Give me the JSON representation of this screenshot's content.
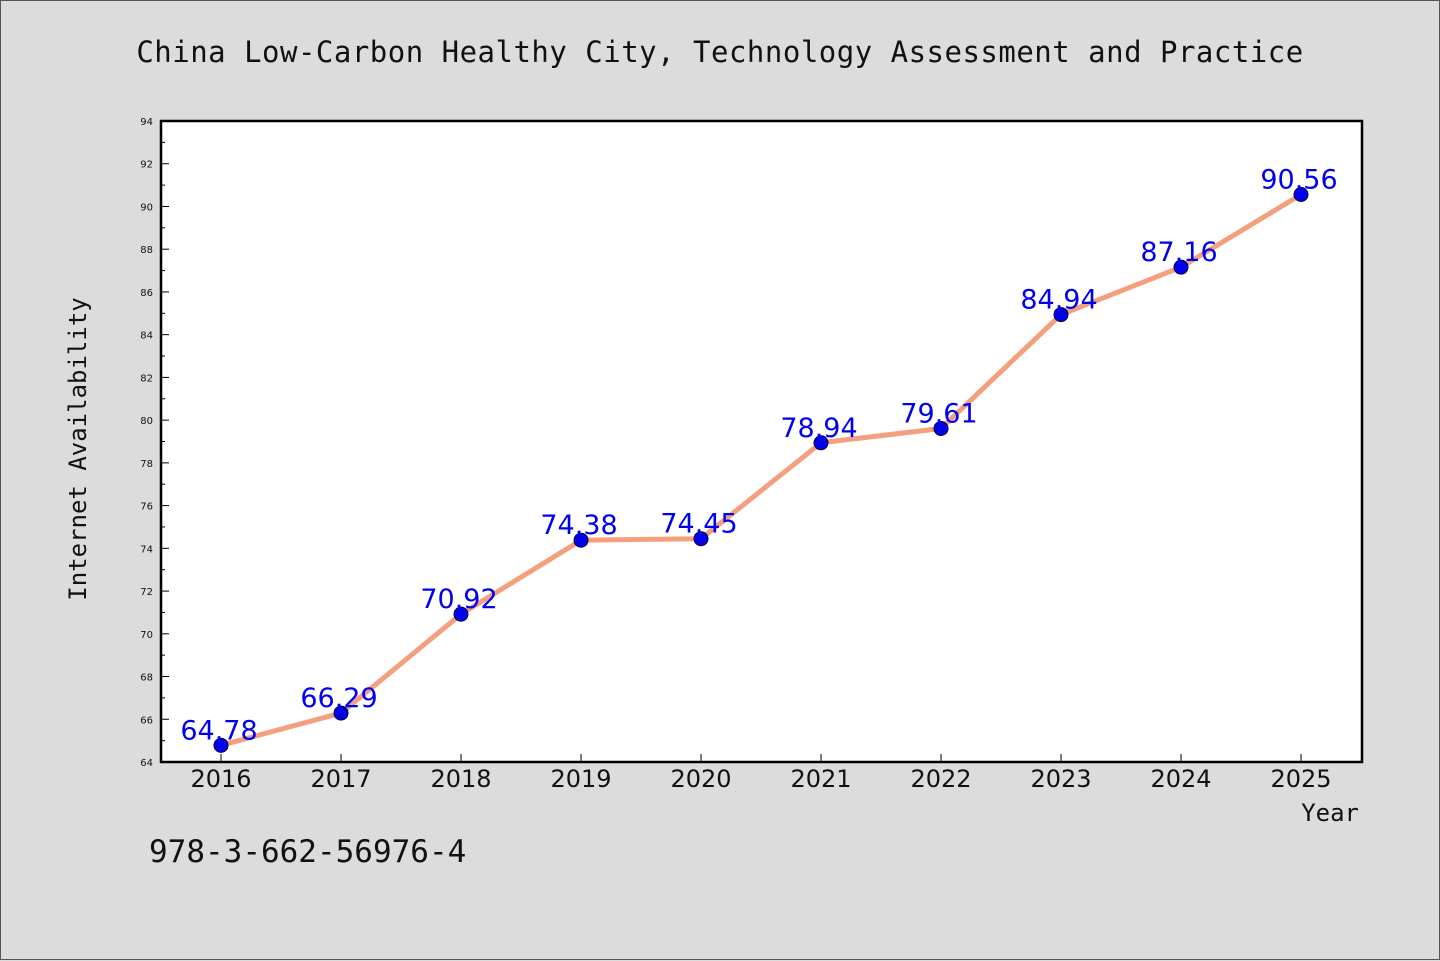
{
  "chart_data": {
    "type": "line",
    "title": "China Low-Carbon Healthy City, Technology Assessment and Practice",
    "xlabel": "Year",
    "ylabel": "Internet Availability",
    "categories": [
      "2016",
      "2017",
      "2018",
      "2019",
      "2020",
      "2021",
      "2022",
      "2023",
      "2024",
      "2025"
    ],
    "series": [
      {
        "values": [
          64.78,
          66.29,
          70.92,
          74.38,
          74.45,
          78.94,
          79.61,
          84.94,
          87.16,
          90.56
        ],
        "data_labels": [
          "64.78",
          "66.29",
          "70.92",
          "74.38",
          "74.45",
          "78.94",
          "79.61",
          "84.94",
          "87.16",
          "90.56"
        ],
        "line_color": "#f4a07e",
        "marker_color": "#0000ee"
      }
    ],
    "ylim": [
      64,
      94
    ],
    "yticks": [
      64,
      66,
      68,
      70,
      72,
      74,
      76,
      78,
      80,
      82,
      84,
      86,
      88,
      90,
      92,
      94
    ],
    "grid": false,
    "legend": "none"
  },
  "footer": {
    "isbn": "978-3-662-56976-4"
  }
}
